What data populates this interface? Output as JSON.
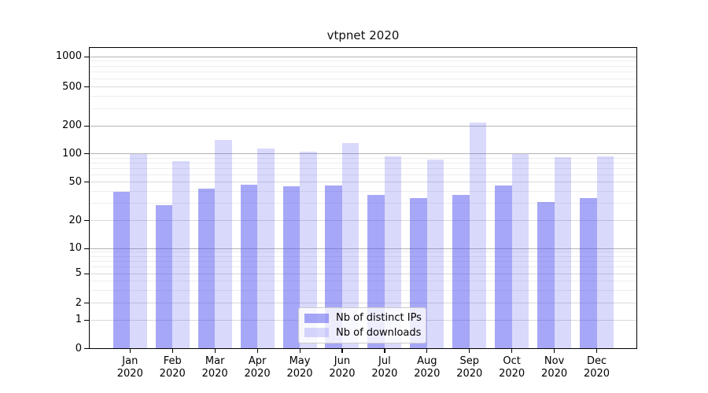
{
  "title": "vtpnet 2020",
  "colors": {
    "distinct_ips": "rgba(80,80,240,0.5)",
    "downloads": "rgba(80,80,240,0.22)",
    "grid_emphasis": "#b4b4b4",
    "grid_tick": "#d9d9d9",
    "grid_minor": "#ededed",
    "spine": "#000000"
  },
  "chart_data": {
    "type": "bar",
    "title": "vtpnet 2020",
    "categories": [
      {
        "month": "Jan",
        "year": "2020"
      },
      {
        "month": "Feb",
        "year": "2020"
      },
      {
        "month": "Mar",
        "year": "2020"
      },
      {
        "month": "Apr",
        "year": "2020"
      },
      {
        "month": "May",
        "year": "2020"
      },
      {
        "month": "Jun",
        "year": "2020"
      },
      {
        "month": "Jul",
        "year": "2020"
      },
      {
        "month": "Aug",
        "year": "2020"
      },
      {
        "month": "Sep",
        "year": "2020"
      },
      {
        "month": "Oct",
        "year": "2020"
      },
      {
        "month": "Nov",
        "year": "2020"
      },
      {
        "month": "Dec",
        "year": "2020"
      }
    ],
    "series": [
      {
        "name": "Nb of distinct IPs",
        "color": "rgba(80,80,240,0.5)",
        "values": [
          40,
          29,
          43,
          47,
          45,
          46,
          37,
          34,
          37,
          46,
          31,
          34
        ]
      },
      {
        "name": "Nb of downloads",
        "color": "rgba(80,80,240,0.22)",
        "values": [
          100,
          83,
          140,
          114,
          105,
          131,
          93,
          87,
          215,
          100,
          92,
          94
        ]
      }
    ],
    "xlabel": "",
    "ylabel": "",
    "ylim": [
      0,
      1000
    ],
    "yscale": "log-like (linear segment 0-1)",
    "yticks": [
      0,
      1,
      2,
      5,
      10,
      20,
      50,
      100,
      200,
      500,
      1000
    ],
    "yticks_emphasis": [
      10,
      100,
      200,
      1000
    ],
    "yticks_minor": [
      3,
      4,
      6,
      7,
      8,
      9,
      30,
      40,
      60,
      70,
      80,
      90,
      300,
      400,
      600,
      700,
      800,
      900
    ],
    "grid": true,
    "legend_position": "lower center"
  }
}
